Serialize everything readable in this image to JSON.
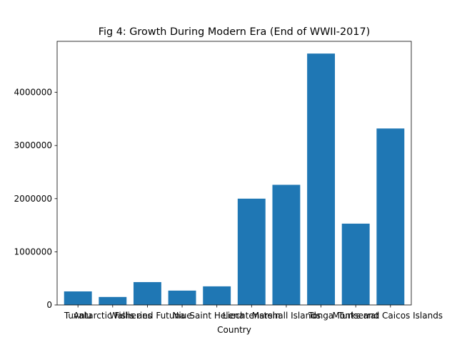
{
  "chart_data": {
    "type": "bar",
    "title": "Fig 4: Growth During Modern Era (End of WWII-2017)",
    "xlabel": "Country",
    "ylabel": "",
    "categories": [
      "Tuvalu",
      "Antarctic Fisheries",
      "Wallis and Futuna",
      "Niue",
      "Saint Helena",
      "Liechtenstein",
      "Marshall Islands",
      "Tonga",
      "Montserrat",
      "Turks and Caicos Islands"
    ],
    "values": [
      255000,
      150000,
      430000,
      270000,
      350000,
      2000000,
      2260000,
      4730000,
      1530000,
      3320000
    ],
    "ylim": [
      0,
      4960000
    ],
    "yticks": [
      0,
      1000000,
      2000000,
      3000000,
      4000000
    ],
    "ytick_labels": [
      "0",
      "1000000",
      "2000000",
      "3000000",
      "4000000"
    ],
    "bar_color": "#1f77b4",
    "grid": false,
    "legend": "none"
  }
}
